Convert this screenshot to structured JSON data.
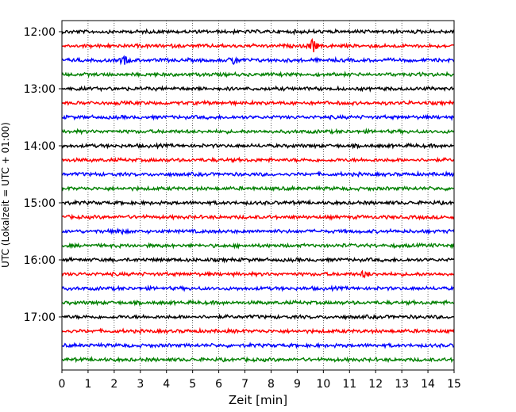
{
  "chart_data": {
    "type": "line",
    "title": "",
    "xlabel": "Zeit  [min]",
    "ylabel": "UTC (Lokalzeit = UTC + 01:00)",
    "xlim": [
      0,
      15
    ],
    "x_ticks": [
      "0",
      "1",
      "2",
      "3",
      "4",
      "5",
      "6",
      "7",
      "8",
      "9",
      "10",
      "11",
      "12",
      "13",
      "14",
      "15"
    ],
    "y_ticks": [
      "12:00",
      "13:00",
      "14:00",
      "15:00",
      "16:00",
      "17:00"
    ],
    "grid": "vertical dotted",
    "trace_colors": [
      "#000000",
      "#ff0000",
      "#0000ff",
      "#008000"
    ],
    "traces": [
      {
        "start": "12:00",
        "color": "#000000"
      },
      {
        "start": "12:15",
        "color": "#ff0000"
      },
      {
        "start": "12:30",
        "color": "#0000ff"
      },
      {
        "start": "12:45",
        "color": "#008000"
      },
      {
        "start": "13:00",
        "color": "#000000"
      },
      {
        "start": "13:15",
        "color": "#ff0000"
      },
      {
        "start": "13:30",
        "color": "#0000ff"
      },
      {
        "start": "13:45",
        "color": "#008000"
      },
      {
        "start": "14:00",
        "color": "#000000"
      },
      {
        "start": "14:15",
        "color": "#ff0000"
      },
      {
        "start": "14:30",
        "color": "#0000ff"
      },
      {
        "start": "14:45",
        "color": "#008000"
      },
      {
        "start": "15:00",
        "color": "#000000"
      },
      {
        "start": "15:15",
        "color": "#ff0000"
      },
      {
        "start": "15:30",
        "color": "#0000ff"
      },
      {
        "start": "15:45",
        "color": "#008000"
      },
      {
        "start": "16:00",
        "color": "#000000"
      },
      {
        "start": "16:15",
        "color": "#ff0000"
      },
      {
        "start": "16:30",
        "color": "#0000ff"
      },
      {
        "start": "16:45",
        "color": "#008000"
      },
      {
        "start": "17:00",
        "color": "#000000"
      },
      {
        "start": "17:15",
        "color": "#ff0000"
      },
      {
        "start": "17:30",
        "color": "#0000ff"
      },
      {
        "start": "17:45",
        "color": "#008000"
      }
    ],
    "events": [
      {
        "start": "12:15",
        "minute": 9.6,
        "amplitude": 2.2
      },
      {
        "start": "12:30",
        "minute": 2.4,
        "amplitude": 1.3
      },
      {
        "start": "12:30",
        "minute": 6.6,
        "amplitude": 1.5
      },
      {
        "start": "15:30",
        "minute": 2.2,
        "amplitude": 1.1
      },
      {
        "start": "16:15",
        "minute": 11.6,
        "amplitude": 1.0
      }
    ]
  }
}
